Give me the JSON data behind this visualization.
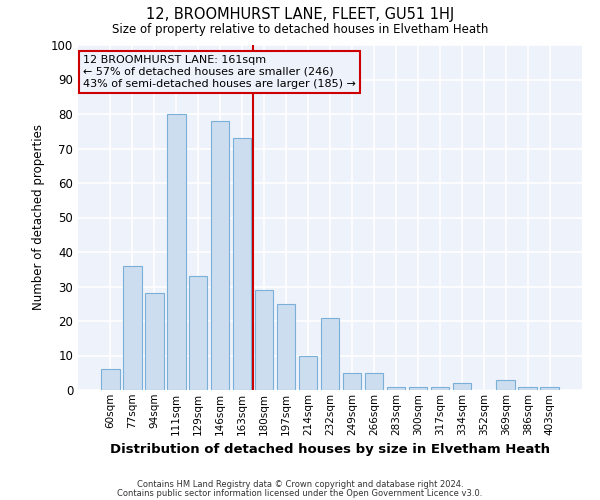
{
  "title": "12, BROOMHURST LANE, FLEET, GU51 1HJ",
  "subtitle": "Size of property relative to detached houses in Elvetham Heath",
  "xlabel": "Distribution of detached houses by size in Elvetham Heath",
  "ylabel": "Number of detached properties",
  "bar_labels": [
    "60sqm",
    "77sqm",
    "94sqm",
    "111sqm",
    "129sqm",
    "146sqm",
    "163sqm",
    "180sqm",
    "197sqm",
    "214sqm",
    "232sqm",
    "249sqm",
    "266sqm",
    "283sqm",
    "300sqm",
    "317sqm",
    "334sqm",
    "352sqm",
    "369sqm",
    "386sqm",
    "403sqm"
  ],
  "bar_values": [
    6,
    36,
    28,
    80,
    33,
    78,
    73,
    29,
    25,
    10,
    21,
    5,
    5,
    1,
    1,
    1,
    2,
    0,
    3,
    1,
    1
  ],
  "bar_color": "#ccddf0",
  "bar_edge_color": "#7ab0d8",
  "vline_index": 6,
  "vline_color": "#cc0000",
  "annotation_text": "12 BROOMHURST LANE: 161sqm\n← 57% of detached houses are smaller (246)\n43% of semi-detached houses are larger (185) →",
  "annotation_box_edge_color": "#cc0000",
  "ylim": [
    0,
    100
  ],
  "yticks": [
    0,
    10,
    20,
    30,
    40,
    50,
    60,
    70,
    80,
    90,
    100
  ],
  "plot_bg_color": "#eef2fb",
  "fig_bg_color": "#ffffff",
  "grid_color": "#ffffff",
  "footer_line1": "Contains HM Land Registry data © Crown copyright and database right 2024.",
  "footer_line2": "Contains public sector information licensed under the Open Government Licence v3.0."
}
